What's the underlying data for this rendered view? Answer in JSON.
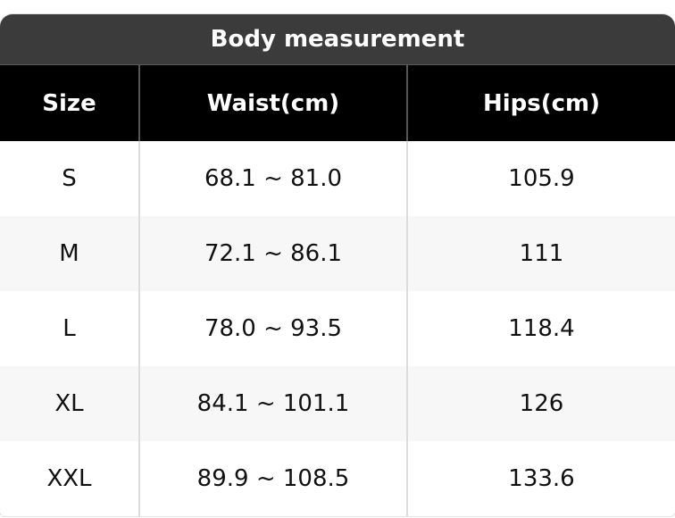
{
  "header": {
    "title": "Body measurement"
  },
  "table": {
    "columns": [
      "Size",
      "Waist(cm)",
      "Hips(cm)"
    ],
    "rows": [
      [
        "S",
        "68.1 ~ 81.0",
        "105.9"
      ],
      [
        "M",
        "72.1 ~ 86.1",
        "111"
      ],
      [
        "L",
        "78.0 ~ 93.5",
        "118.4"
      ],
      [
        "XL",
        "84.1 ~ 101.1",
        "126"
      ],
      [
        "XXL",
        "89.9 ~ 108.5",
        "133.6"
      ]
    ]
  }
}
